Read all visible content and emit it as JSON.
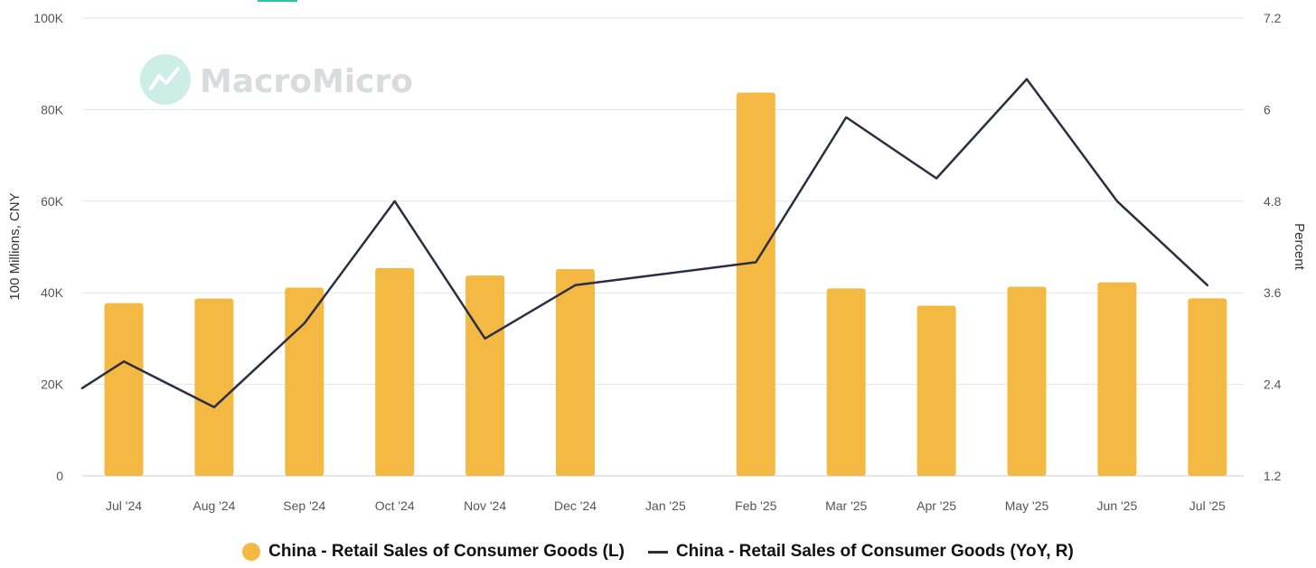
{
  "colors": {
    "bar": "#f4b942",
    "line": "#2b2d42",
    "grid": "#e3e3e3",
    "watermark_logo": "#cdeee6",
    "accent_tab": "#2ec4a6"
  },
  "watermark": {
    "text": "MacroMicro",
    "icon": "trend-chart-icon"
  },
  "chart_data": {
    "type": "bar",
    "categories": [
      "Jul '24",
      "Aug '24",
      "Sep '24",
      "Oct '24",
      "Nov '24",
      "Dec '24",
      "Jan '25",
      "Feb '25",
      "Mar '25",
      "Apr '25",
      "May '25",
      "Jun '25",
      "Jul '25"
    ],
    "series": [
      {
        "name": "China - Retail Sales of Consumer Goods (L)",
        "type": "bar",
        "axis": "left",
        "values": [
          37757,
          38726,
          41112,
          45396,
          43763,
          45172,
          null,
          83731,
          40940,
          37174,
          41326,
          42287,
          38780
        ]
      },
      {
        "name": "China - Retail Sales of Consumer Goods (YoY, R)",
        "type": "line",
        "axis": "right",
        "values": [
          2.7,
          2.1,
          3.2,
          4.8,
          3.0,
          3.7,
          null,
          4.0,
          5.9,
          5.1,
          6.4,
          4.8,
          3.7
        ],
        "segment_start": 2.35,
        "segment_end": 3.7
      }
    ],
    "y_left": {
      "label": "100 Millions, CNY",
      "range": [
        0,
        100000
      ],
      "ticks": [
        0,
        20000,
        40000,
        60000,
        80000,
        100000
      ],
      "tick_labels": [
        "0",
        "20K",
        "40K",
        "60K",
        "80K",
        "100K"
      ]
    },
    "y_right": {
      "label": "Percent",
      "range": [
        1.2,
        7.2
      ],
      "ticks": [
        1.2,
        2.4,
        3.6,
        4.8,
        6,
        7.2
      ],
      "tick_labels": [
        "1.2",
        "2.4",
        "3.6",
        "4.8",
        "6",
        "7.2"
      ]
    },
    "grid": true,
    "legend_position": "bottom"
  }
}
